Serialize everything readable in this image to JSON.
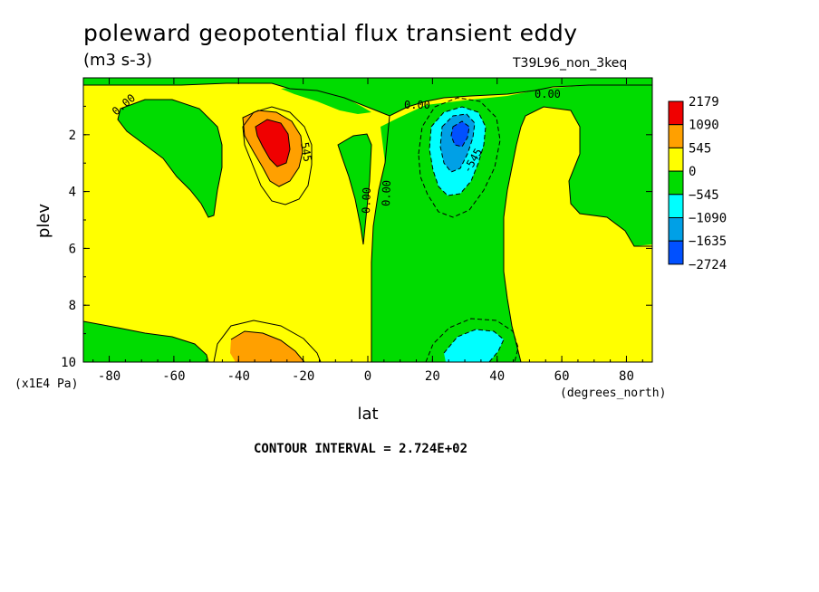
{
  "title": "poleward geopotential flux transient eddy",
  "units": "(m3 s-3)",
  "run_label": "T39L96_non_3keq",
  "contour_note": "CONTOUR INTERVAL = 2.724E+02",
  "chart_data": {
    "type": "heatmap",
    "xlabel": "lat",
    "ylabel": "plev",
    "x_unit_label": "(degrees_north)",
    "y_unit_label": "(x1E4 Pa)",
    "xlim": [
      -88,
      88
    ],
    "ylim": [
      10,
      0.1
    ],
    "x_ticks": [
      -80,
      -60,
      -40,
      -20,
      0,
      20,
      40,
      60,
      80
    ],
    "y_ticks": [
      2,
      4,
      6,
      8,
      10
    ],
    "colorbar": {
      "labels": [
        "2179",
        "1090",
        "545",
        "0",
        "-545",
        "-1090",
        "-1635",
        "-2724"
      ],
      "colors": [
        "#f00000",
        "#ffa000",
        "#ffff00",
        "#00dc00",
        "#00ffff",
        "#00a0e6",
        "#0050ff"
      ]
    },
    "contour_labels": [
      "0.00",
      "0.00",
      "0.00",
      "0.00",
      "0.00",
      "545",
      "-545"
    ],
    "features": [
      {
        "label": "positive maximum",
        "lat": -29,
        "plev": 2.3,
        "value": 2179
      },
      {
        "label": "negative minimum",
        "lat": 28,
        "plev": 2.3,
        "value": -2724
      },
      {
        "label": "near-surface positive",
        "lat": -30,
        "plev": 9.5,
        "value": 545
      },
      {
        "label": "near-surface negative",
        "lat": 30,
        "plev": 9.5,
        "value": -545
      }
    ]
  }
}
